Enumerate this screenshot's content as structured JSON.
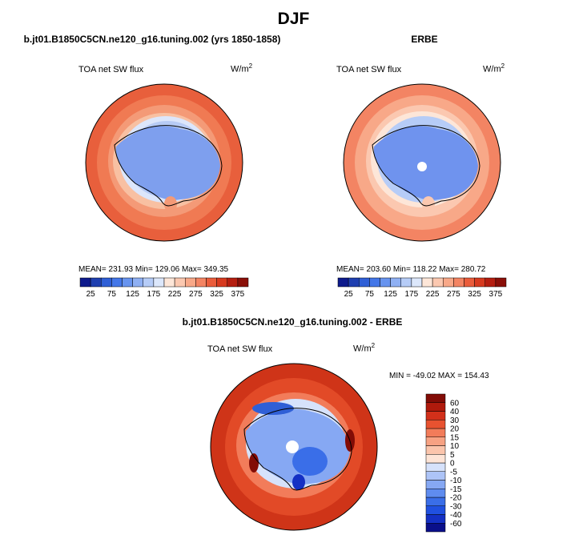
{
  "figure": {
    "title": "DJF",
    "units_base": "W/m",
    "units_exp": "2"
  },
  "panels": [
    {
      "title": "b.jt01.B1850C5CN.ne120_g16.tuning.002 (yrs 1850-1858)",
      "variable": "TOA net SW flux",
      "stats_text": "MEAN= 231.93   Min= 129.06   Max= 349.35"
    },
    {
      "title": "ERBE",
      "variable": "TOA net SW flux",
      "stats_text": "MEAN= 203.60   Min= 118.22   Max= 280.72"
    },
    {
      "title": "b.jt01.B1850C5CN.ne120_g16.tuning.002 - ERBE",
      "variable": "TOA net SW flux",
      "stats_text": "MIN = -49.02  MAX = 154.43"
    }
  ],
  "chart_data": [
    {
      "type": "heatmap",
      "title": "b.jt01.B1850C5CN.ne120_g16.tuning.002 (yrs 1850-1858)",
      "variable": "TOA net SW flux",
      "units": "W/m2",
      "projection": "south polar stereographic",
      "stats": {
        "mean": 231.93,
        "min": 129.06,
        "max": 349.35
      },
      "colorbar": {
        "orientation": "horizontal",
        "levels": [
          25,
          50,
          75,
          100,
          125,
          150,
          175,
          200,
          225,
          250,
          275,
          300,
          325,
          350,
          375
        ],
        "tick_labels": [
          "25",
          "75",
          "125",
          "175",
          "225",
          "275",
          "325",
          "375"
        ],
        "colors": [
          "#0d1a8c",
          "#1f3fb0",
          "#2f5fd6",
          "#4477e8",
          "#6894ef",
          "#8fb0f3",
          "#b6ccf7",
          "#dce7fb",
          "#fde6d8",
          "#fbc8b0",
          "#f8a888",
          "#f38463",
          "#ea5c3b",
          "#d73a1f",
          "#b51e10",
          "#8a0f08"
        ]
      }
    },
    {
      "type": "heatmap",
      "title": "ERBE",
      "variable": "TOA net SW flux",
      "units": "W/m2",
      "projection": "south polar stereographic",
      "stats": {
        "mean": 203.6,
        "min": 118.22,
        "max": 280.72
      },
      "colorbar": {
        "orientation": "horizontal",
        "levels": [
          25,
          50,
          75,
          100,
          125,
          150,
          175,
          200,
          225,
          250,
          275,
          300,
          325,
          350,
          375
        ],
        "tick_labels": [
          "25",
          "75",
          "125",
          "175",
          "225",
          "275",
          "325",
          "375"
        ],
        "colors": [
          "#0d1a8c",
          "#1f3fb0",
          "#2f5fd6",
          "#4477e8",
          "#6894ef",
          "#8fb0f3",
          "#b6ccf7",
          "#dce7fb",
          "#fde6d8",
          "#fbc8b0",
          "#f8a888",
          "#f38463",
          "#ea5c3b",
          "#d73a1f",
          "#b51e10",
          "#8a0f08"
        ]
      }
    },
    {
      "type": "heatmap",
      "title": "b.jt01.B1850C5CN.ne120_g16.tuning.002 - ERBE",
      "variable": "TOA net SW flux",
      "units": "W/m2",
      "projection": "south polar stereographic",
      "stats": {
        "min": -49.02,
        "max": 154.43
      },
      "colorbar": {
        "orientation": "vertical",
        "levels": [
          -60,
          -40,
          -30,
          -20,
          -15,
          -10,
          -5,
          0,
          5,
          10,
          15,
          20,
          30,
          40,
          60
        ],
        "tick_labels": [
          "-60",
          "-40",
          "-30",
          "-20",
          "-15",
          "-10",
          "-5",
          "0",
          "5",
          "10",
          "15",
          "20",
          "30",
          "40",
          "60"
        ],
        "colors": [
          "#0a0f8a",
          "#1430c4",
          "#2050e0",
          "#3a6ee8",
          "#5f8cef",
          "#86a8f3",
          "#adc4f7",
          "#d6e2fb",
          "#fde4d6",
          "#fbc5ac",
          "#f7a283",
          "#f27c5a",
          "#e85230",
          "#d2301a",
          "#b01a0c",
          "#820c06"
        ]
      }
    }
  ]
}
